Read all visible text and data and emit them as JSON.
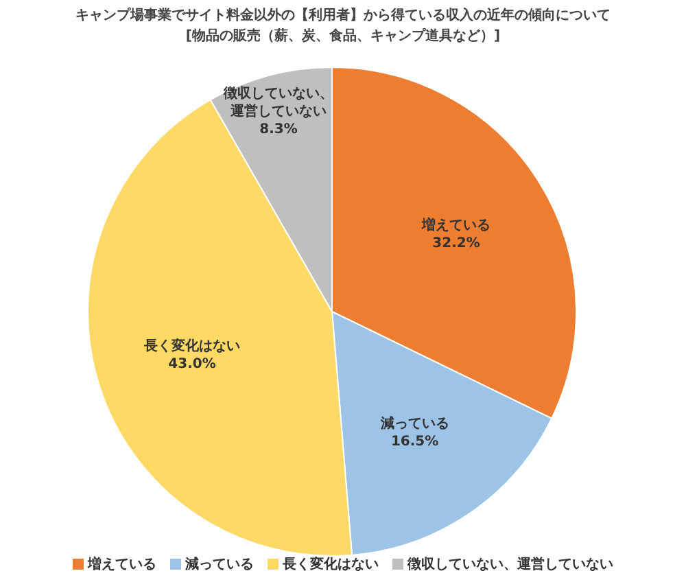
{
  "chart_data": {
    "type": "pie",
    "title": "キャンプ場事業でサイト料金以外の【利用者】から得ている収入の近年の傾向について",
    "subtitle": "[物品の販売（薪、炭、食品、キャンプ道具など）]",
    "categories": [
      "増えている",
      "減っている",
      "長く変化はない",
      "徴収していない、運営していない"
    ],
    "values": [
      32.2,
      16.5,
      43.0,
      8.3
    ],
    "value_labels": [
      "32.2%",
      "16.5%",
      "43.0%",
      "8.3%"
    ],
    "colors": [
      "#ed7d31",
      "#9dc3e6",
      "#ffd966",
      "#bfbfbf"
    ],
    "legend": "bottom"
  }
}
